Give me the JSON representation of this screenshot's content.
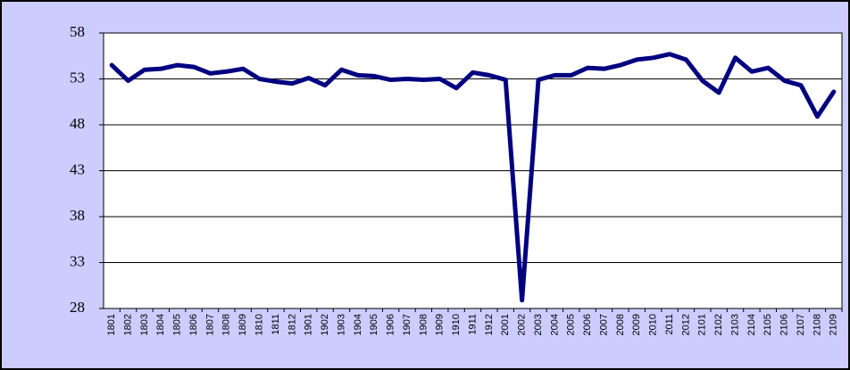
{
  "chart_data": {
    "type": "line",
    "categories": [
      "1801",
      "1802",
      "1803",
      "1804",
      "1805",
      "1806",
      "1807",
      "1808",
      "1809",
      "1810",
      "1811",
      "1812",
      "1901",
      "1902",
      "1903",
      "1904",
      "1905",
      "1906",
      "1907",
      "1908",
      "1909",
      "1910",
      "1911",
      "1912",
      "2001",
      "2002",
      "2003",
      "2004",
      "2005",
      "2006",
      "2007",
      "2008",
      "2009",
      "2010",
      "2011",
      "2012",
      "2101",
      "2102",
      "2103",
      "2104",
      "2105",
      "2106",
      "2107",
      "2108",
      "2109"
    ],
    "values": [
      54.5,
      52.8,
      54.0,
      54.1,
      54.5,
      54.3,
      53.6,
      53.8,
      54.1,
      53.0,
      52.7,
      52.5,
      53.1,
      52.3,
      54.0,
      53.4,
      53.3,
      52.9,
      53.0,
      52.9,
      53.0,
      52.0,
      53.7,
      53.4,
      52.9,
      28.9,
      52.9,
      53.4,
      53.4,
      54.2,
      54.1,
      54.5,
      55.1,
      55.3,
      55.7,
      55.1,
      52.8,
      51.5,
      55.3,
      53.8,
      54.2,
      52.8,
      52.3,
      48.9,
      51.6
    ],
    "color": "#000080",
    "ylim": [
      28,
      58
    ],
    "yticks": [
      28,
      33,
      38,
      43,
      48,
      53,
      58
    ],
    "grid": true
  }
}
